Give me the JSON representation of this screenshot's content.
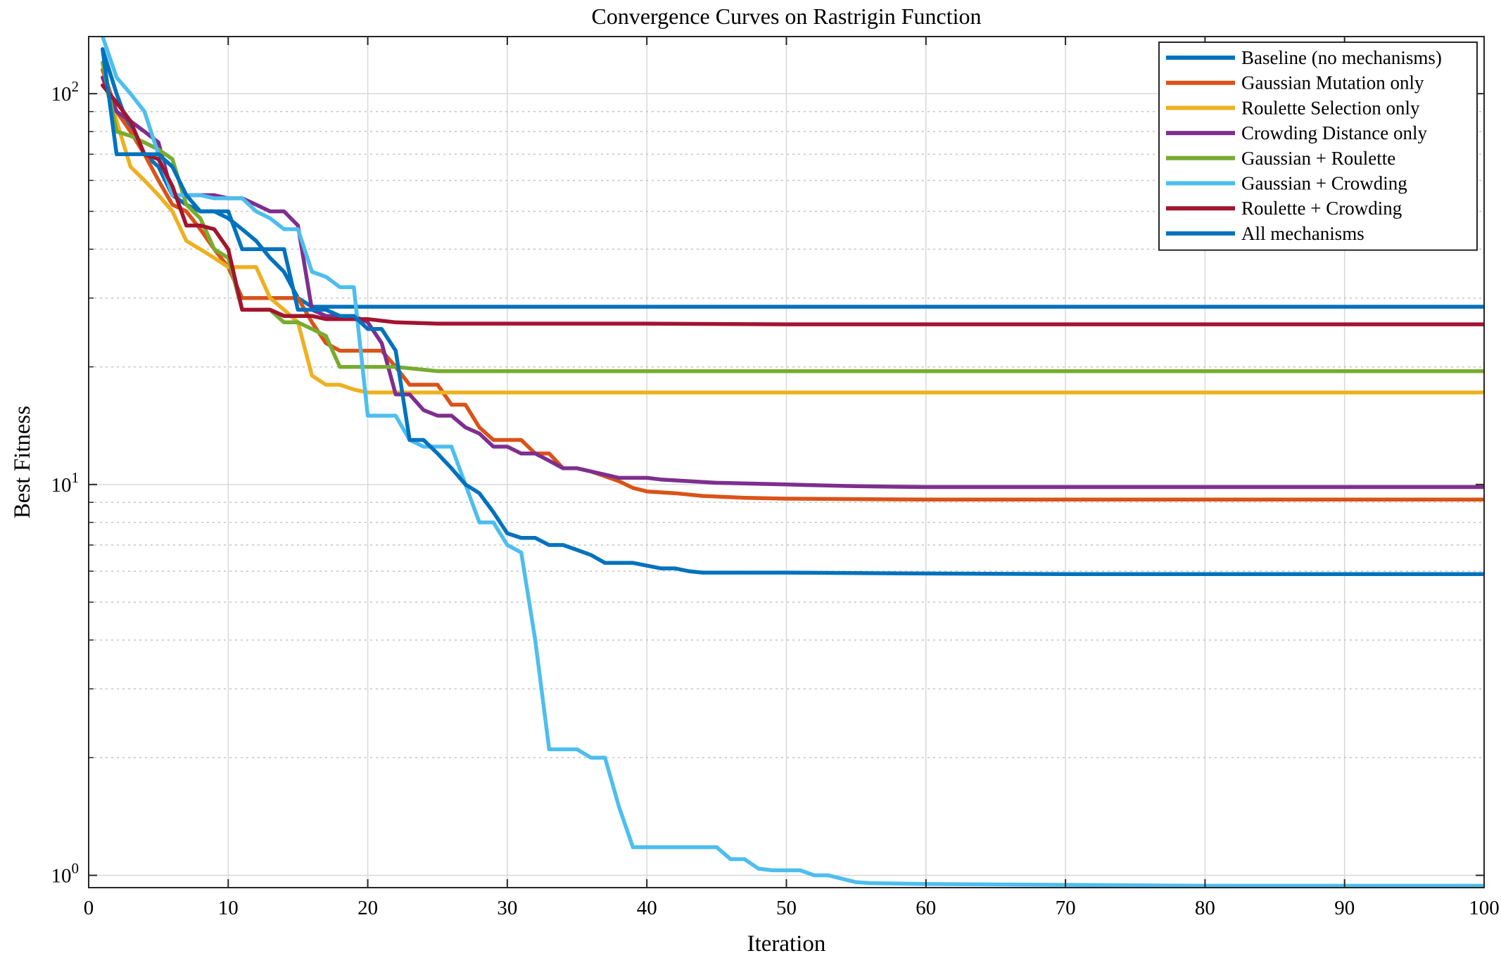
{
  "chart_data": {
    "type": "line",
    "title": "Convergence Curves on Rastrigin Function",
    "xlabel": "Iteration",
    "ylabel": "Best Fitness",
    "xlim": [
      0,
      100
    ],
    "ylim": [
      0.93,
      140
    ],
    "yscale": "log",
    "grid": true,
    "legend_position": "top-right",
    "x_ticks": [
      "0",
      "10",
      "20",
      "30",
      "40",
      "50",
      "60",
      "70",
      "80",
      "90",
      "100"
    ],
    "y_ticks": [
      {
        "base": "10",
        "exp": "0",
        "value": 1
      },
      {
        "base": "10",
        "exp": "1",
        "value": 10
      },
      {
        "base": "10",
        "exp": "2",
        "value": 100
      }
    ],
    "series": [
      {
        "name": "Baseline (no mechanisms)",
        "color": "#0072BD",
        "points": [
          [
            1,
            130
          ],
          [
            2,
            100
          ],
          [
            3,
            80
          ],
          [
            4,
            70
          ],
          [
            5,
            65
          ],
          [
            6,
            55
          ],
          [
            7,
            52
          ],
          [
            8,
            50
          ],
          [
            9,
            50
          ],
          [
            10,
            48
          ],
          [
            11,
            45
          ],
          [
            12,
            42
          ],
          [
            13,
            38
          ],
          [
            14,
            35
          ],
          [
            15,
            30
          ],
          [
            16,
            28.5
          ],
          [
            17,
            28.5
          ],
          [
            30,
            28.5
          ],
          [
            50,
            28.5
          ],
          [
            100,
            28.5
          ]
        ]
      },
      {
        "name": "Gaussian Mutation only",
        "color": "#D95319",
        "points": [
          [
            1,
            115
          ],
          [
            2,
            90
          ],
          [
            3,
            80
          ],
          [
            4,
            70
          ],
          [
            5,
            60
          ],
          [
            6,
            52
          ],
          [
            7,
            50
          ],
          [
            8,
            45
          ],
          [
            9,
            40
          ],
          [
            10,
            36
          ],
          [
            11,
            30
          ],
          [
            12,
            30
          ],
          [
            14,
            30
          ],
          [
            15,
            30
          ],
          [
            16,
            26
          ],
          [
            17,
            23
          ],
          [
            18,
            22
          ],
          [
            20,
            22
          ],
          [
            21,
            22
          ],
          [
            22,
            20
          ],
          [
            23,
            18
          ],
          [
            24,
            18
          ],
          [
            25,
            18
          ],
          [
            26,
            16
          ],
          [
            27,
            16
          ],
          [
            28,
            14
          ],
          [
            29,
            13
          ],
          [
            31,
            13
          ],
          [
            32,
            12
          ],
          [
            33,
            12
          ],
          [
            34,
            11
          ],
          [
            35,
            11
          ],
          [
            36,
            10.8
          ],
          [
            37,
            10.5
          ],
          [
            38,
            10.2
          ],
          [
            39,
            9.8
          ],
          [
            40,
            9.6
          ],
          [
            42,
            9.5
          ],
          [
            44,
            9.35
          ],
          [
            47,
            9.25
          ],
          [
            50,
            9.2
          ],
          [
            60,
            9.15
          ],
          [
            80,
            9.15
          ],
          [
            100,
            9.15
          ]
        ]
      },
      {
        "name": "Roulette Selection only",
        "color": "#EDB120",
        "points": [
          [
            1,
            110
          ],
          [
            2,
            85
          ],
          [
            3,
            65
          ],
          [
            4,
            60
          ],
          [
            5,
            55
          ],
          [
            6,
            50
          ],
          [
            7,
            42
          ],
          [
            8,
            40
          ],
          [
            9,
            38
          ],
          [
            10,
            36
          ],
          [
            11,
            36
          ],
          [
            12,
            36
          ],
          [
            13,
            30
          ],
          [
            14,
            28
          ],
          [
            15,
            26
          ],
          [
            16,
            19
          ],
          [
            17,
            18
          ],
          [
            18,
            18
          ],
          [
            19,
            17.5
          ],
          [
            20,
            17.2
          ],
          [
            22,
            17.2
          ],
          [
            25,
            17.2
          ],
          [
            30,
            17.2
          ],
          [
            50,
            17.2
          ],
          [
            100,
            17.2
          ]
        ]
      },
      {
        "name": "Crowding Distance only",
        "color": "#7E2F8E",
        "points": [
          [
            1,
            110
          ],
          [
            2,
            90
          ],
          [
            3,
            85
          ],
          [
            4,
            80
          ],
          [
            5,
            75
          ],
          [
            6,
            55
          ],
          [
            7,
            55
          ],
          [
            8,
            55
          ],
          [
            9,
            55
          ],
          [
            10,
            54
          ],
          [
            11,
            54
          ],
          [
            12,
            52
          ],
          [
            13,
            50
          ],
          [
            14,
            50
          ],
          [
            15,
            46
          ],
          [
            16,
            28
          ],
          [
            17,
            27
          ],
          [
            18,
            27
          ],
          [
            19,
            27
          ],
          [
            20,
            26
          ],
          [
            21,
            23
          ],
          [
            22,
            17
          ],
          [
            23,
            17
          ],
          [
            24,
            15.5
          ],
          [
            25,
            15
          ],
          [
            26,
            15
          ],
          [
            27,
            14
          ],
          [
            28,
            13.5
          ],
          [
            29,
            12.5
          ],
          [
            30,
            12.5
          ],
          [
            31,
            12
          ],
          [
            32,
            12
          ],
          [
            33,
            11.5
          ],
          [
            34,
            11
          ],
          [
            35,
            11
          ],
          [
            36,
            10.8
          ],
          [
            37,
            10.6
          ],
          [
            38,
            10.4
          ],
          [
            40,
            10.4
          ],
          [
            41,
            10.3
          ],
          [
            43,
            10.2
          ],
          [
            45,
            10.1
          ],
          [
            50,
            10
          ],
          [
            55,
            9.9
          ],
          [
            60,
            9.85
          ],
          [
            80,
            9.85
          ],
          [
            100,
            9.85
          ]
        ]
      },
      {
        "name": "Gaussian + Roulette",
        "color": "#77AC30",
        "points": [
          [
            1,
            120
          ],
          [
            2,
            80
          ],
          [
            3,
            78
          ],
          [
            4,
            75
          ],
          [
            5,
            72
          ],
          [
            6,
            68
          ],
          [
            7,
            52
          ],
          [
            8,
            48
          ],
          [
            9,
            40
          ],
          [
            10,
            38
          ],
          [
            11,
            28
          ],
          [
            12,
            28
          ],
          [
            13,
            28
          ],
          [
            14,
            26
          ],
          [
            15,
            26
          ],
          [
            16,
            25
          ],
          [
            17,
            24
          ],
          [
            18,
            20
          ],
          [
            19,
            20
          ],
          [
            20,
            20
          ],
          [
            22,
            20
          ],
          [
            25,
            19.5
          ],
          [
            30,
            19.5
          ],
          [
            50,
            19.5
          ],
          [
            100,
            19.5
          ]
        ]
      },
      {
        "name": "Gaussian + Crowding",
        "color": "#4DBEEE",
        "points": [
          [
            1,
            140
          ],
          [
            2,
            110
          ],
          [
            3,
            100
          ],
          [
            4,
            90
          ],
          [
            5,
            70
          ],
          [
            6,
            55
          ],
          [
            7,
            55
          ],
          [
            8,
            55
          ],
          [
            9,
            54
          ],
          [
            10,
            54
          ],
          [
            11,
            54
          ],
          [
            12,
            50
          ],
          [
            13,
            48
          ],
          [
            14,
            45
          ],
          [
            15,
            45
          ],
          [
            16,
            35
          ],
          [
            17,
            34
          ],
          [
            18,
            32
          ],
          [
            19,
            32
          ],
          [
            20,
            15
          ],
          [
            21,
            15
          ],
          [
            22,
            15
          ],
          [
            23,
            13
          ],
          [
            24,
            12.5
          ],
          [
            25,
            12.5
          ],
          [
            26,
            12.5
          ],
          [
            27,
            10
          ],
          [
            28,
            8
          ],
          [
            29,
            8
          ],
          [
            30,
            7
          ],
          [
            31,
            6.7
          ],
          [
            32,
            4
          ],
          [
            33,
            2.1
          ],
          [
            34,
            2.1
          ],
          [
            35,
            2.1
          ],
          [
            36,
            2
          ],
          [
            37,
            2
          ],
          [
            38,
            1.5
          ],
          [
            39,
            1.18
          ],
          [
            40,
            1.18
          ],
          [
            41,
            1.18
          ],
          [
            42,
            1.18
          ],
          [
            44,
            1.18
          ],
          [
            45,
            1.18
          ],
          [
            46,
            1.1
          ],
          [
            47,
            1.1
          ],
          [
            48,
            1.04
          ],
          [
            49,
            1.03
          ],
          [
            50,
            1.03
          ],
          [
            51,
            1.03
          ],
          [
            52,
            1
          ],
          [
            53,
            1
          ],
          [
            54,
            0.98
          ],
          [
            55,
            0.96
          ],
          [
            56,
            0.955
          ],
          [
            60,
            0.95
          ],
          [
            70,
            0.945
          ],
          [
            80,
            0.94
          ],
          [
            100,
            0.94
          ]
        ]
      },
      {
        "name": "Roulette + Crowding",
        "color": "#A2142F",
        "points": [
          [
            1,
            105
          ],
          [
            2,
            95
          ],
          [
            3,
            85
          ],
          [
            4,
            70
          ],
          [
            5,
            68
          ],
          [
            6,
            58
          ],
          [
            7,
            46
          ],
          [
            8,
            46
          ],
          [
            9,
            45
          ],
          [
            10,
            40
          ],
          [
            11,
            28
          ],
          [
            12,
            28
          ],
          [
            13,
            28
          ],
          [
            14,
            27
          ],
          [
            15,
            27
          ],
          [
            16,
            27
          ],
          [
            17,
            26.5
          ],
          [
            18,
            26.5
          ],
          [
            19,
            26.5
          ],
          [
            20,
            26.5
          ],
          [
            22,
            26
          ],
          [
            25,
            25.8
          ],
          [
            30,
            25.8
          ],
          [
            40,
            25.8
          ],
          [
            50,
            25.7
          ],
          [
            100,
            25.7
          ]
        ]
      },
      {
        "name": "All mechanisms",
        "color": "#0072BD",
        "points": [
          [
            1,
            130
          ],
          [
            2,
            70
          ],
          [
            3,
            70
          ],
          [
            4,
            70
          ],
          [
            5,
            70
          ],
          [
            6,
            65
          ],
          [
            7,
            55
          ],
          [
            8,
            50
          ],
          [
            9,
            50
          ],
          [
            10,
            50
          ],
          [
            11,
            40
          ],
          [
            12,
            40
          ],
          [
            13,
            40
          ],
          [
            14,
            40
          ],
          [
            15,
            28
          ],
          [
            16,
            28
          ],
          [
            17,
            28
          ],
          [
            18,
            27
          ],
          [
            19,
            27
          ],
          [
            20,
            25
          ],
          [
            21,
            25
          ],
          [
            22,
            22
          ],
          [
            23,
            13
          ],
          [
            24,
            13
          ],
          [
            25,
            12
          ],
          [
            26,
            11
          ],
          [
            27,
            10
          ],
          [
            28,
            9.5
          ],
          [
            29,
            8.5
          ],
          [
            30,
            7.5
          ],
          [
            31,
            7.3
          ],
          [
            32,
            7.3
          ],
          [
            33,
            7
          ],
          [
            34,
            7
          ],
          [
            35,
            6.8
          ],
          [
            36,
            6.6
          ],
          [
            37,
            6.3
          ],
          [
            38,
            6.3
          ],
          [
            39,
            6.3
          ],
          [
            40,
            6.2
          ],
          [
            41,
            6.1
          ],
          [
            42,
            6.1
          ],
          [
            43,
            6
          ],
          [
            44,
            5.95
          ],
          [
            50,
            5.95
          ],
          [
            60,
            5.92
          ],
          [
            70,
            5.9
          ],
          [
            100,
            5.9
          ]
        ]
      }
    ]
  }
}
